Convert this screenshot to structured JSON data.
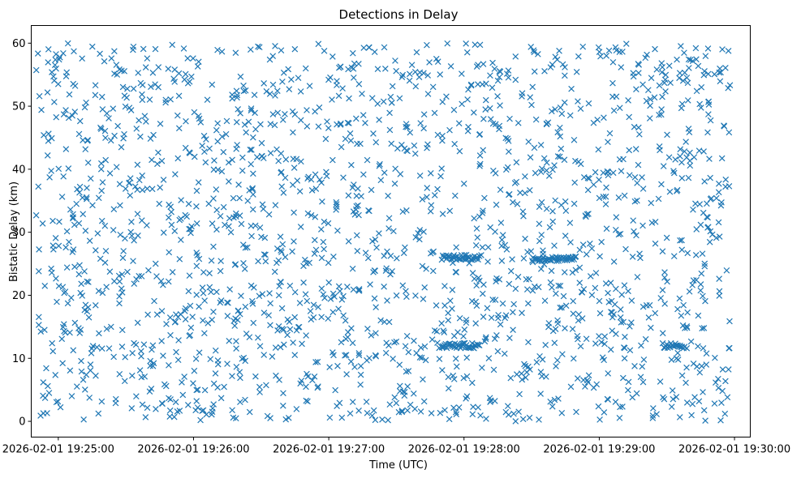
{
  "chart_data": {
    "type": "scatter",
    "title": "Detections in Delay",
    "xlabel": "Time (UTC)",
    "ylabel": "Bistatic Delay (km)",
    "x_ticks": [
      "2026-02-01 19:25:00",
      "2026-02-01 19:26:00",
      "2026-02-01 19:27:00",
      "2026-02-01 19:28:00",
      "2026-02-01 19:29:00",
      "2026-02-01 19:30:00"
    ],
    "y_ticks": [
      0,
      10,
      20,
      30,
      40,
      50,
      60
    ],
    "xlim": [
      "2026-02-01 19:24:48",
      "2026-02-01 19:30:07"
    ],
    "ylim": [
      -2.5,
      62.8
    ],
    "x_range": [
      "2026-02-01 19:24:50",
      "2026-02-01 19:29:58"
    ],
    "y_range": [
      0,
      60
    ],
    "marker": "x",
    "marker_color": "#1f77b4",
    "grid": false,
    "legend": "none",
    "point_count": 1900,
    "clusters": [
      {
        "t_start": "2026-02-01 19:27:50",
        "t_end": "2026-02-01 19:28:07",
        "y": 26.0
      },
      {
        "t_start": "2026-02-01 19:27:50",
        "t_end": "2026-02-01 19:28:07",
        "y": 12.0
      },
      {
        "t_start": "2026-02-01 19:28:30",
        "t_end": "2026-02-01 19:28:50",
        "y": 25.8
      },
      {
        "t_start": "2026-02-01 19:29:28",
        "t_end": "2026-02-01 19:29:38",
        "y": 12.0
      }
    ]
  }
}
